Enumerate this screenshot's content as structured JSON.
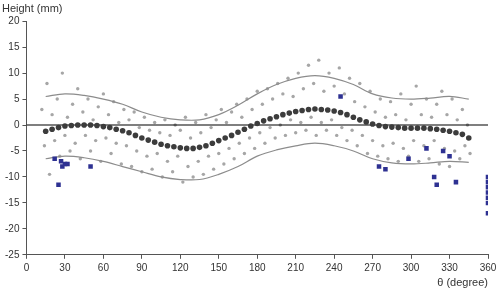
{
  "chart_data": {
    "type": "scatter",
    "title": "Height (mm)",
    "xlabel": "θ (degree)",
    "xlim": [
      0,
      360
    ],
    "xticks": [
      0,
      30,
      60,
      90,
      120,
      150,
      180,
      210,
      240,
      270,
      300,
      330,
      360
    ],
    "ylim": [
      -25,
      20
    ],
    "yticks": [
      -25,
      -20,
      -15,
      -10,
      -5,
      0,
      5,
      10,
      15,
      20
    ],
    "grid": false,
    "series": [
      {
        "type": "scatter",
        "marker": "dot",
        "color": "#a6a6a6",
        "x": [
          12,
          16,
          20,
          24,
          28,
          32,
          36,
          40,
          44,
          48,
          52,
          56,
          60,
          64,
          68,
          72,
          76,
          80,
          84,
          88,
          92,
          96,
          100,
          104,
          108,
          112,
          116,
          120,
          124,
          128,
          132,
          136,
          140,
          144,
          148,
          152,
          156,
          160,
          164,
          168,
          172,
          176,
          180,
          184,
          188,
          192,
          196,
          200,
          204,
          208,
          212,
          216,
          220,
          224,
          228,
          232,
          236,
          240,
          244,
          248,
          252,
          256,
          260,
          264,
          268,
          272,
          276,
          280,
          284,
          288,
          292,
          296,
          300,
          304,
          308,
          312,
          316,
          320,
          324,
          328,
          332,
          336,
          340,
          344
        ],
        "values": [
          3,
          8,
          2,
          5,
          10,
          1.5,
          4,
          7,
          2.5,
          5,
          1,
          3.5,
          6,
          2,
          4.5,
          0.5,
          3,
          1,
          2.5,
          -0.5,
          1.5,
          -1,
          0.5,
          -1.5,
          1,
          -2,
          0,
          -1,
          1.5,
          -2.5,
          0.5,
          -1.5,
          2,
          -0.5,
          1,
          3,
          0.5,
          2.5,
          4,
          1.5,
          5,
          3,
          6.5,
          4,
          7,
          5,
          8,
          6,
          9,
          5.5,
          10,
          7,
          11.5,
          8,
          12.5,
          6.5,
          10,
          7.5,
          11,
          6,
          9,
          4.5,
          8,
          3.5,
          6.5,
          2.5,
          5,
          1.5,
          4.5,
          2,
          6,
          1,
          4,
          7.5,
          2,
          5,
          1.5,
          4,
          6.5,
          2,
          5,
          1,
          3,
          0
        ]
      },
      {
        "type": "scatter",
        "marker": "dot",
        "color": "#a6a6a6",
        "x": [
          14,
          18,
          22,
          26,
          30,
          34,
          38,
          42,
          46,
          50,
          54,
          58,
          62,
          66,
          70,
          74,
          78,
          82,
          86,
          90,
          94,
          98,
          102,
          106,
          110,
          114,
          118,
          122,
          126,
          130,
          134,
          138,
          142,
          146,
          150,
          154,
          158,
          162,
          166,
          170,
          174,
          178,
          182,
          186,
          190,
          194,
          198,
          202,
          206,
          210,
          214,
          218,
          222,
          226,
          230,
          234,
          238,
          242,
          246,
          250,
          254,
          258,
          262,
          266,
          270,
          274,
          278,
          282,
          286,
          290,
          294,
          298,
          302,
          306,
          310,
          314,
          318,
          322,
          326,
          330,
          334,
          338,
          342,
          346
        ],
        "values": [
          -4,
          -9.5,
          -3,
          -6,
          -2,
          -5,
          -3.5,
          -6.5,
          -2,
          -5,
          -3,
          -7,
          -2.5,
          -5.5,
          -3.5,
          -7.5,
          -4,
          -8,
          -5,
          -9,
          -6,
          -8.5,
          -5.5,
          -10,
          -7,
          -9,
          -6,
          -11,
          -8,
          -10,
          -7,
          -9.5,
          -6,
          -8.5,
          -5.5,
          -7.5,
          -4.5,
          -6.5,
          -3.5,
          -5.5,
          -2.5,
          -4.5,
          -1.5,
          -3.5,
          -0.5,
          -2.5,
          0,
          -2,
          1,
          -1.5,
          0.5,
          -1,
          1.5,
          -2,
          0.5,
          -1,
          1,
          -2,
          -0.5,
          -3,
          -1,
          -4,
          -2,
          -5.5,
          -3,
          -6,
          -4,
          -6.5,
          -3.5,
          -7,
          -4.5,
          -6,
          -3,
          -7,
          -4,
          -6.5,
          -3,
          -7.5,
          -4.5,
          -8,
          -5,
          -6.5,
          -4,
          -5.5
        ]
      },
      {
        "type": "line",
        "marker": "none",
        "line_style": "solid",
        "color": "#8c8c8c",
        "x": [
          15,
          30,
          45,
          60,
          75,
          90,
          105,
          120,
          135,
          150,
          165,
          180,
          195,
          210,
          225,
          240,
          255,
          270,
          285,
          300,
          315,
          330,
          345
        ],
        "values": [
          5.5,
          6,
          5.7,
          5,
          4,
          2.5,
          1.5,
          1,
          1,
          2,
          3.8,
          6,
          7.8,
          9,
          9.5,
          9,
          7.8,
          6,
          5.2,
          5,
          5.2,
          5.5,
          5
        ]
      },
      {
        "type": "line",
        "marker": "none",
        "line_style": "solid",
        "color": "#8c8c8c",
        "x": [
          15,
          30,
          45,
          60,
          75,
          90,
          105,
          120,
          135,
          150,
          165,
          180,
          195,
          210,
          225,
          240,
          255,
          270,
          285,
          300,
          315,
          330,
          345
        ],
        "values": [
          -6.5,
          -6,
          -6.3,
          -7,
          -8,
          -9,
          -10,
          -10.5,
          -10.5,
          -9.5,
          -8,
          -6,
          -4.8,
          -4,
          -3.5,
          -4,
          -5,
          -6.5,
          -7.3,
          -7.5,
          -7.3,
          -7,
          -7.2
        ]
      },
      {
        "type": "line",
        "marker": "none",
        "line_style": "solid",
        "color": "#000000",
        "x": [
          0,
          360
        ],
        "values": [
          0,
          0
        ]
      },
      {
        "type": "scatter",
        "marker": "circle",
        "color": "#3c3c3c",
        "x": [
          15,
          20,
          25,
          30,
          35,
          40,
          45,
          50,
          55,
          60,
          65,
          70,
          75,
          80,
          85,
          90,
          95,
          100,
          105,
          110,
          115,
          120,
          125,
          130,
          135,
          140,
          145,
          150,
          155,
          160,
          165,
          170,
          175,
          180,
          185,
          190,
          195,
          200,
          205,
          210,
          215,
          220,
          225,
          230,
          235,
          240,
          245,
          250,
          255,
          260,
          265,
          270,
          275,
          280,
          285,
          290,
          295,
          300,
          305,
          310,
          315,
          320,
          325,
          330,
          335,
          340,
          345
        ],
        "values": [
          -1.2,
          -0.8,
          -0.5,
          -0.2,
          -0.1,
          0,
          0,
          0,
          -0.1,
          -0.3,
          -0.5,
          -0.8,
          -1.1,
          -1.5,
          -2,
          -2.5,
          -2.9,
          -3.3,
          -3.7,
          -4,
          -4.2,
          -4.4,
          -4.5,
          -4.5,
          -4.3,
          -4,
          -3.5,
          -3,
          -2.5,
          -2,
          -1.4,
          -0.8,
          -0.2,
          0.3,
          0.8,
          1.2,
          1.6,
          2,
          2.3,
          2.6,
          2.8,
          3,
          3.1,
          3,
          2.9,
          2.7,
          2.4,
          2,
          1.5,
          1,
          0.6,
          0.2,
          -0.1,
          -0.3,
          -0.4,
          -0.5,
          -0.6,
          -0.6,
          -0.6,
          -0.6,
          -0.7,
          -0.8,
          -1,
          -1.2,
          -1.5,
          -1.8,
          -2.5
        ]
      },
      {
        "type": "scatter",
        "marker": "square",
        "color": "#2e3192",
        "x": [
          22,
          25,
          27,
          28,
          30,
          32,
          50,
          245,
          275,
          280,
          298,
          312,
          318,
          320,
          325,
          330,
          335,
          360,
          360,
          360,
          360,
          360,
          360,
          360
        ],
        "values": [
          -6.5,
          -11.5,
          -7,
          -8,
          -7.5,
          -7.5,
          -8,
          5.5,
          -8,
          -8.5,
          -6.5,
          -4.5,
          -10,
          -11.5,
          -5,
          -6,
          -11,
          -10,
          -11,
          -12,
          -13,
          -14,
          -15,
          -17
        ]
      }
    ]
  }
}
